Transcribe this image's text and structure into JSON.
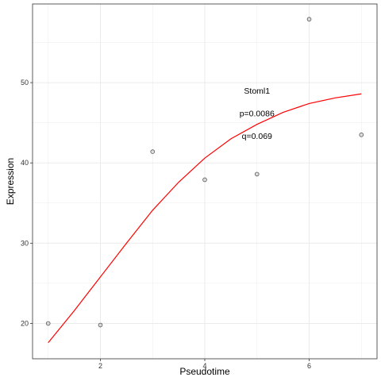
{
  "chart_data": {
    "type": "scatter",
    "xlabel": "Pseudotime",
    "ylabel": "Expression",
    "xlim": [
      0.7,
      7.3
    ],
    "ylim": [
      15.6,
      59.8
    ],
    "x_ticks": [
      2,
      4,
      6
    ],
    "y_ticks": [
      20,
      30,
      40,
      50
    ],
    "grid": true,
    "points": [
      {
        "x": 1,
        "y": 20.0
      },
      {
        "x": 2,
        "y": 19.8
      },
      {
        "x": 3,
        "y": 41.4
      },
      {
        "x": 4,
        "y": 37.9
      },
      {
        "x": 5,
        "y": 38.6
      },
      {
        "x": 6,
        "y": 57.9
      },
      {
        "x": 7,
        "y": 43.5
      }
    ],
    "fit_curve": {
      "color": "#ff0000",
      "points": [
        {
          "x": 1.0,
          "y": 17.6
        },
        {
          "x": 1.5,
          "y": 21.6
        },
        {
          "x": 2.0,
          "y": 25.8
        },
        {
          "x": 2.5,
          "y": 30.0
        },
        {
          "x": 3.0,
          "y": 34.1
        },
        {
          "x": 3.5,
          "y": 37.6
        },
        {
          "x": 4.0,
          "y": 40.6
        },
        {
          "x": 4.5,
          "y": 43.0
        },
        {
          "x": 5.0,
          "y": 44.8
        },
        {
          "x": 5.5,
          "y": 46.3
        },
        {
          "x": 6.0,
          "y": 47.4
        },
        {
          "x": 6.5,
          "y": 48.1
        },
        {
          "x": 7.0,
          "y": 48.6
        }
      ]
    },
    "annotations": [
      {
        "text": "Stoml1",
        "x": 5.0,
        "y": 49.0
      },
      {
        "text": "p=0.0086",
        "x": 5.0,
        "y": 46.2
      },
      {
        "text": "q=0.069",
        "x": 5.0,
        "y": 43.4
      }
    ],
    "colors": {
      "fit": "#ff0000",
      "point_fill": "#c8c8c8",
      "point_stroke": "#555555",
      "grid": "#ebebeb",
      "panel_border": "#333333"
    }
  }
}
